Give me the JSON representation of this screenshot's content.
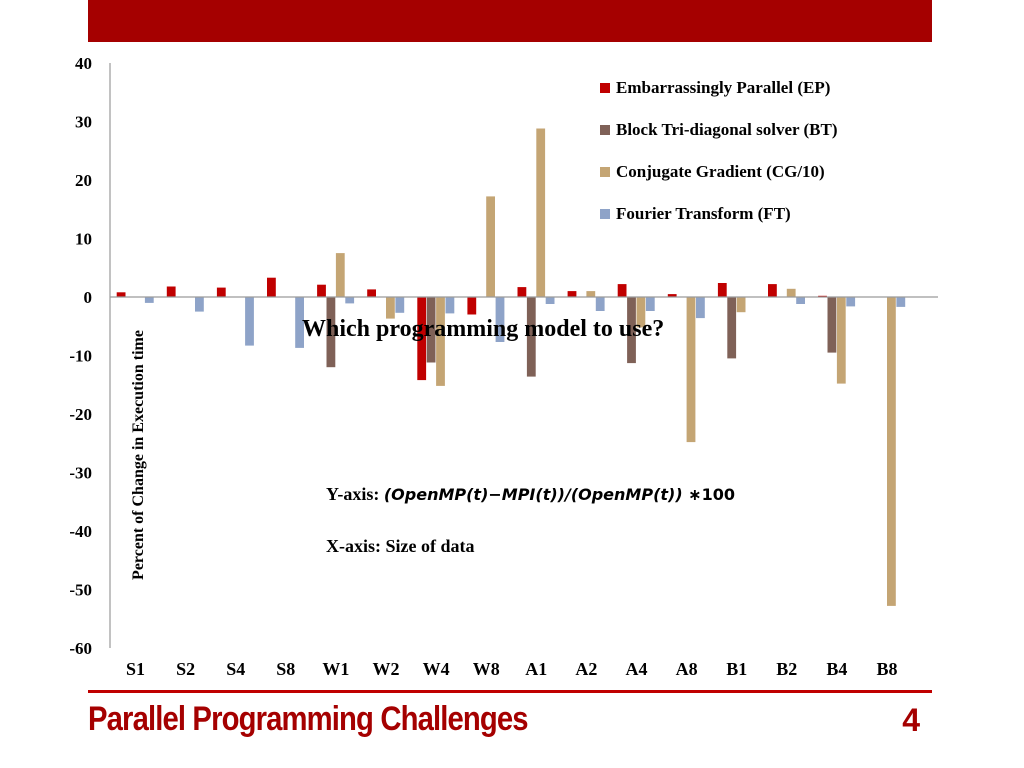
{
  "slide": {
    "footer_title": "Parallel Programming Challenges",
    "page_number": "4",
    "overlay_title": "Which programming model to use?",
    "yaxis_note_prefix": "Y-axis: ",
    "yaxis_note_formula": "(OpenMP(t)−MPI(t))/(OpenMP(t))",
    "yaxis_note_suffix": " ∗100",
    "xaxis_note": "X-axis: Size of data",
    "accent_color": "#a50000"
  },
  "chart_data": {
    "type": "bar",
    "ylabel": "Percent of Change in Execution time",
    "ylim": [
      -60,
      40
    ],
    "yticks": [
      40,
      30,
      20,
      10,
      0,
      -10,
      -20,
      -30,
      -40,
      -50,
      -60
    ],
    "categories": [
      "S1",
      "S2",
      "S4",
      "S8",
      "W1",
      "W2",
      "W4",
      "W8",
      "A1",
      "A2",
      "A4",
      "A8",
      "B1",
      "B2",
      "B4",
      "B8"
    ],
    "legend_position": "top-right",
    "grid": false,
    "series": [
      {
        "name": "Embarrassingly Parallel (EP)",
        "color": "#c00000",
        "values": [
          0.8,
          1.8,
          1.6,
          3.3,
          2.1,
          1.3,
          -14.2,
          -3.0,
          1.7,
          1.0,
          2.2,
          0.5,
          2.4,
          2.2,
          0.2,
          0.0
        ]
      },
      {
        "name": "Block Tri-diagonal solver (BT)",
        "color": "#7f6157",
        "values": [
          0,
          0,
          0,
          0,
          -12.0,
          0,
          -11.2,
          0,
          -13.6,
          0,
          -11.3,
          0,
          -10.5,
          0,
          -9.5,
          0
        ]
      },
      {
        "name": "Conjugate Gradient (CG/10)",
        "color": "#c4a574",
        "values": [
          0,
          0,
          0,
          0,
          7.5,
          -3.7,
          -15.2,
          17.2,
          28.8,
          1.0,
          -5.2,
          -24.8,
          -2.6,
          1.4,
          -14.8,
          -52.8
        ]
      },
      {
        "name": "Fourier Transform (FT)",
        "color": "#8ea3c8",
        "values": [
          -1.0,
          -2.5,
          -8.3,
          -8.7,
          -1.1,
          -2.7,
          -2.8,
          -7.7,
          -1.2,
          -2.4,
          -2.4,
          -3.6,
          0,
          -1.2,
          -1.6,
          -1.7
        ]
      }
    ]
  }
}
